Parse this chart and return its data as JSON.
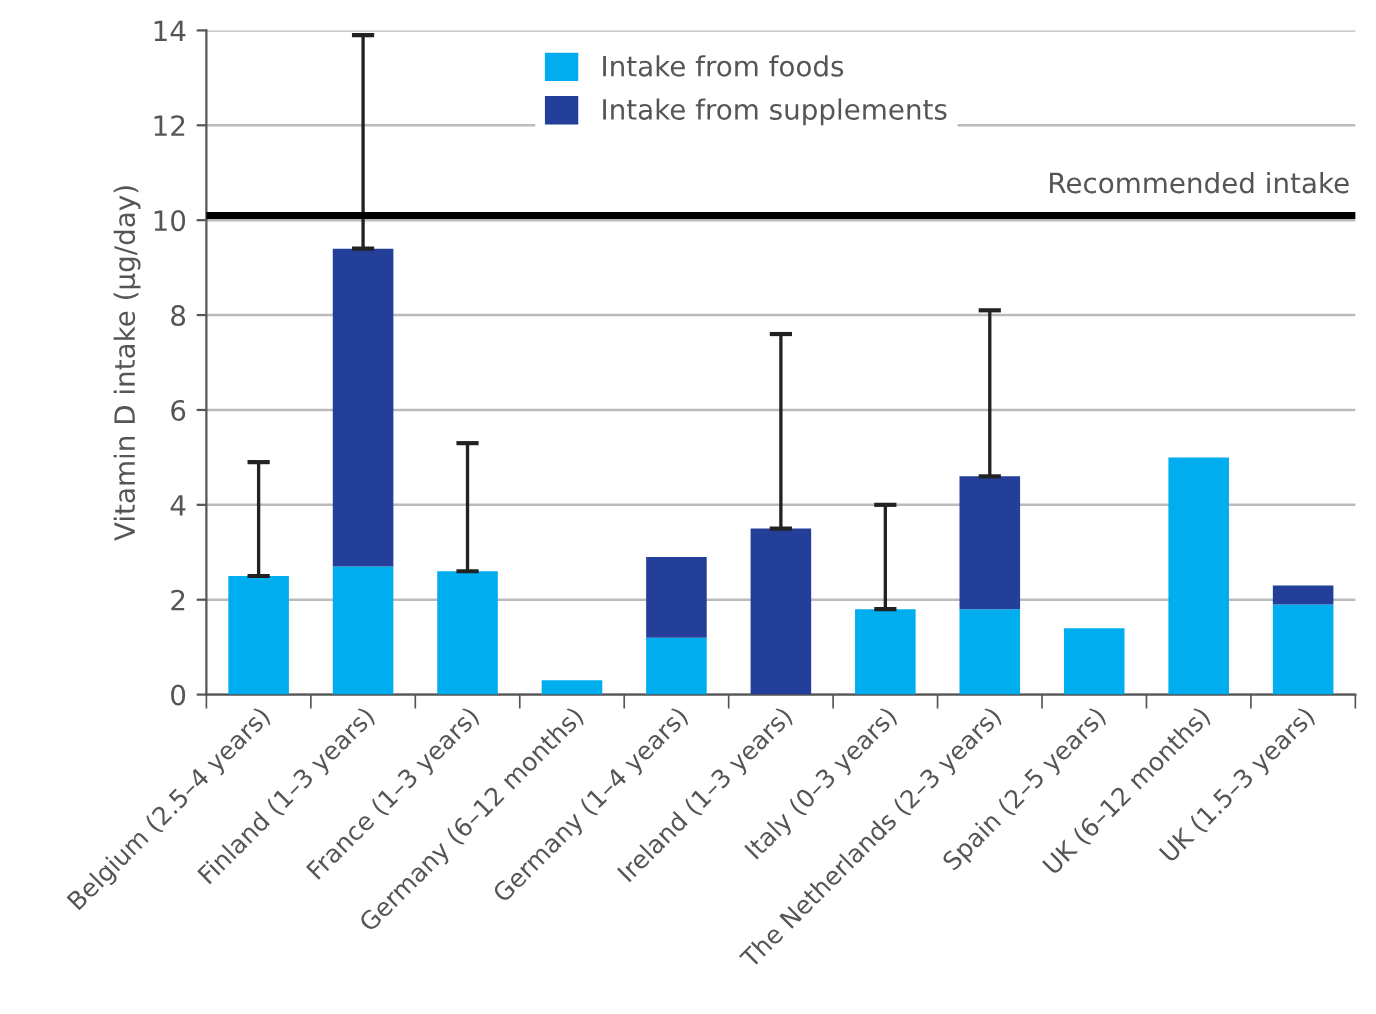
{
  "chart_data": {
    "type": "bar",
    "stacked": true,
    "ylabel": "Vitamin D intake (µg/day)",
    "categories": [
      "Belgium (2.5–4 years)",
      "Finland (1–3 years)",
      "France (1–3 years)",
      "Germany (6–12 months)",
      "Germany (1–4 years)",
      "Ireland (1–3 years)",
      "Italy (0–3 years)",
      "The Netherlands (2–3 years)",
      "Spain (2–5 years)",
      "UK (6–12 months)",
      "UK (1.5–3 years)"
    ],
    "series": [
      {
        "name": "Intake from foods",
        "color": "#00aeef",
        "values": [
          2.5,
          2.7,
          2.6,
          0.3,
          1.2,
          0,
          1.8,
          1.8,
          1.4,
          5.0,
          1.9
        ],
        "errors": [
          [
            2.5,
            4.9
          ],
          null,
          [
            2.6,
            5.3
          ],
          null,
          null,
          null,
          [
            1.8,
            4.0
          ],
          null,
          null,
          null,
          null
        ]
      },
      {
        "name": "Intake from supplements",
        "color": "#233f99",
        "values": [
          0,
          6.7,
          0,
          0,
          1.7,
          3.5,
          0,
          2.8,
          0,
          0,
          0.4
        ],
        "errors": [
          null,
          [
            9.4,
            13.9
          ],
          null,
          null,
          null,
          [
            3.5,
            7.6
          ],
          null,
          [
            4.6,
            8.1
          ],
          null,
          null,
          null
        ]
      }
    ],
    "ylim": [
      0,
      14
    ],
    "yticks": [
      0,
      2,
      4,
      6,
      8,
      10,
      12,
      14
    ],
    "grid": "y",
    "legend": "top",
    "ref_lines": [
      {
        "axis": "y",
        "value": 10.1,
        "label": "Recommended intake",
        "color": "#000000"
      }
    ]
  }
}
